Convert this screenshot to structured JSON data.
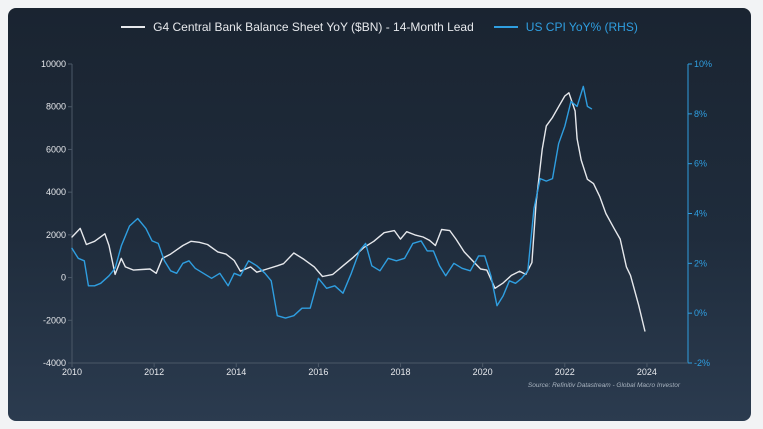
{
  "chart_data": {
    "type": "line",
    "title": "",
    "legend_placement": "top-center",
    "grid": false,
    "source": "Source: Refinitiv Datastream - Global Macro Investor",
    "x_axis": {
      "range": [
        2010,
        2025
      ],
      "ticks": [
        "2010",
        "2012",
        "2014",
        "2016",
        "2018",
        "2020",
        "2022",
        "2024"
      ]
    },
    "y_left": {
      "range": [
        -4000,
        10000
      ],
      "ticks": [
        "-4000",
        "-2000",
        "0",
        "2000",
        "4000",
        "6000",
        "8000",
        "10000"
      ]
    },
    "y_right": {
      "range": [
        -2,
        10
      ],
      "ticks": [
        "-2%",
        "0%",
        "2%",
        "4%",
        "6%",
        "8%",
        "10%"
      ]
    },
    "series": [
      {
        "name": "G4 Central Bank Balance Sheet YoY ($BN) - 14-Month Lead",
        "axis": "left",
        "color": "#e6e8ec",
        "x": [
          2010.0,
          2010.2,
          2010.35,
          2010.55,
          2010.8,
          2010.9,
          2011.05,
          2011.2,
          2011.3,
          2011.5,
          2011.7,
          2011.9,
          2012.05,
          2012.2,
          2012.4,
          2012.55,
          2012.7,
          2012.9,
          2013.1,
          2013.3,
          2013.55,
          2013.75,
          2013.95,
          2014.1,
          2014.35,
          2014.5,
          2014.75,
          2015.0,
          2015.15,
          2015.4,
          2015.65,
          2015.9,
          2016.1,
          2016.35,
          2016.6,
          2016.85,
          2017.1,
          2017.35,
          2017.6,
          2017.85,
          2018.0,
          2018.15,
          2018.35,
          2018.55,
          2018.7,
          2018.85,
          2019.0,
          2019.2,
          2019.35,
          2019.55,
          2019.75,
          2019.95,
          2020.1,
          2020.3,
          2020.5,
          2020.7,
          2020.9,
          2021.05,
          2021.2,
          2021.3,
          2021.45,
          2021.55,
          2021.7,
          2021.85,
          2022.0,
          2022.1,
          2022.25,
          2022.3,
          2022.4,
          2022.55,
          2022.7,
          2022.85,
          2023.0,
          2023.2,
          2023.35,
          2023.5,
          2023.6,
          2023.8,
          2023.95
        ],
        "values": [
          1900,
          2300,
          1550,
          1700,
          2050,
          1500,
          150,
          900,
          500,
          350,
          380,
          400,
          200,
          900,
          1100,
          1300,
          1500,
          1700,
          1650,
          1550,
          1200,
          1100,
          800,
          300,
          500,
          250,
          400,
          550,
          650,
          1150,
          850,
          500,
          50,
          150,
          550,
          950,
          1400,
          1700,
          2100,
          2200,
          1800,
          2150,
          2000,
          1900,
          1750,
          1500,
          2250,
          2200,
          1800,
          1200,
          800,
          400,
          350,
          -500,
          -250,
          100,
          300,
          150,
          700,
          3500,
          6000,
          7100,
          7500,
          8000,
          8500,
          8650,
          7800,
          6500,
          5500,
          4600,
          4400,
          3800,
          3000,
          2300,
          1800,
          500,
          100,
          -1300,
          -2500
        ]
      },
      {
        "name": "US CPI YoY% (RHS)",
        "axis": "right",
        "color": "#2f9ee0",
        "x": [
          2010.0,
          2010.15,
          2010.3,
          2010.4,
          2010.55,
          2010.7,
          2010.9,
          2011.05,
          2011.2,
          2011.4,
          2011.6,
          2011.8,
          2011.95,
          2012.1,
          2012.25,
          2012.4,
          2012.55,
          2012.7,
          2012.85,
          2013.0,
          2013.2,
          2013.4,
          2013.6,
          2013.8,
          2013.95,
          2014.1,
          2014.3,
          2014.5,
          2014.7,
          2014.85,
          2015.0,
          2015.2,
          2015.4,
          2015.6,
          2015.8,
          2016.0,
          2016.2,
          2016.4,
          2016.6,
          2016.8,
          2017.0,
          2017.15,
          2017.3,
          2017.5,
          2017.7,
          2017.9,
          2018.1,
          2018.3,
          2018.5,
          2018.65,
          2018.8,
          2018.95,
          2019.1,
          2019.3,
          2019.5,
          2019.7,
          2019.9,
          2020.05,
          2020.2,
          2020.35,
          2020.5,
          2020.65,
          2020.8,
          2020.95,
          2021.1,
          2021.25,
          2021.4,
          2021.55,
          2021.7,
          2021.85,
          2022.0,
          2022.15,
          2022.3,
          2022.45,
          2022.55,
          2022.65
        ],
        "values": [
          2.6,
          2.2,
          2.1,
          1.1,
          1.1,
          1.2,
          1.5,
          1.8,
          2.7,
          3.5,
          3.8,
          3.4,
          2.9,
          2.8,
          2.1,
          1.7,
          1.6,
          2.0,
          2.1,
          1.8,
          1.6,
          1.4,
          1.6,
          1.1,
          1.6,
          1.5,
          2.1,
          1.9,
          1.6,
          1.3,
          -0.1,
          -0.2,
          -0.1,
          0.2,
          0.2,
          1.4,
          1.0,
          1.1,
          0.8,
          1.6,
          2.5,
          2.8,
          1.9,
          1.7,
          2.2,
          2.1,
          2.2,
          2.8,
          2.9,
          2.5,
          2.5,
          1.9,
          1.5,
          2.0,
          1.8,
          1.7,
          2.3,
          2.3,
          1.5,
          0.3,
          0.7,
          1.3,
          1.2,
          1.4,
          1.7,
          4.2,
          5.4,
          5.3,
          5.4,
          6.8,
          7.5,
          8.5,
          8.3,
          9.1,
          8.3,
          8.2
        ]
      }
    ]
  }
}
